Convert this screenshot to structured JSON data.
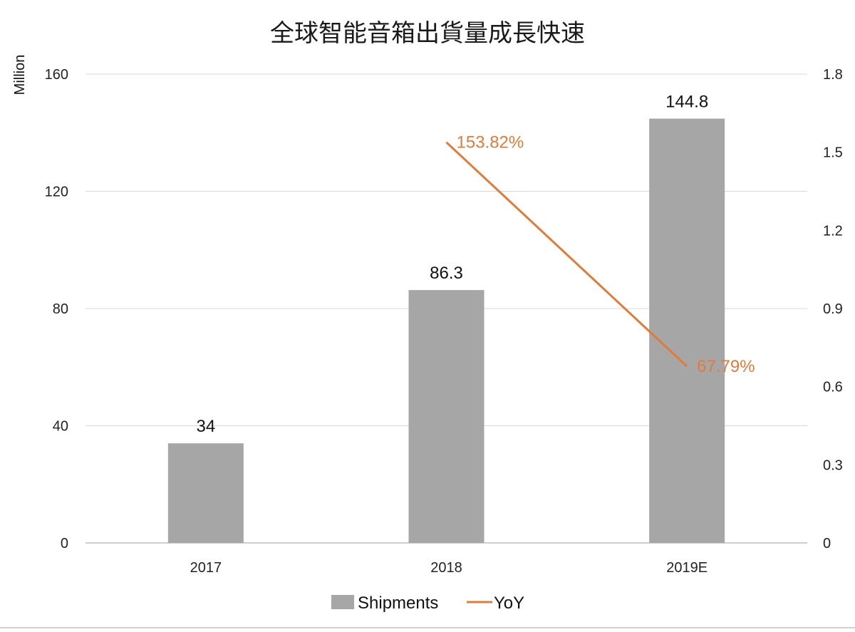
{
  "chart_data": {
    "type": "bar",
    "title": "全球智能音箱出貨量成長快速",
    "ylabel": "Million",
    "y2label": "",
    "categories": [
      "2017",
      "2018",
      "2019E"
    ],
    "ylim": [
      0,
      160
    ],
    "yticks": [
      "0",
      "40",
      "80",
      "120",
      "160"
    ],
    "y2lim": [
      0,
      1.8
    ],
    "y2ticks": [
      "0",
      "0.3",
      "0.6",
      "0.9",
      "1.2",
      "1.5",
      "1.8"
    ],
    "grid": true,
    "legend_position": "bottom",
    "series": [
      {
        "name": "Shipments",
        "type": "bar",
        "axis": "left",
        "color": "#a6a6a6",
        "values": [
          34,
          86.3,
          144.8
        ],
        "labels": [
          "34",
          "86.3",
          "144.8"
        ]
      },
      {
        "name": "YoY",
        "type": "line",
        "axis": "right",
        "color": "#e07b39",
        "values": [
          null,
          1.5382,
          0.6779
        ],
        "labels": [
          "",
          "153.82%",
          "67.79%"
        ]
      }
    ]
  }
}
